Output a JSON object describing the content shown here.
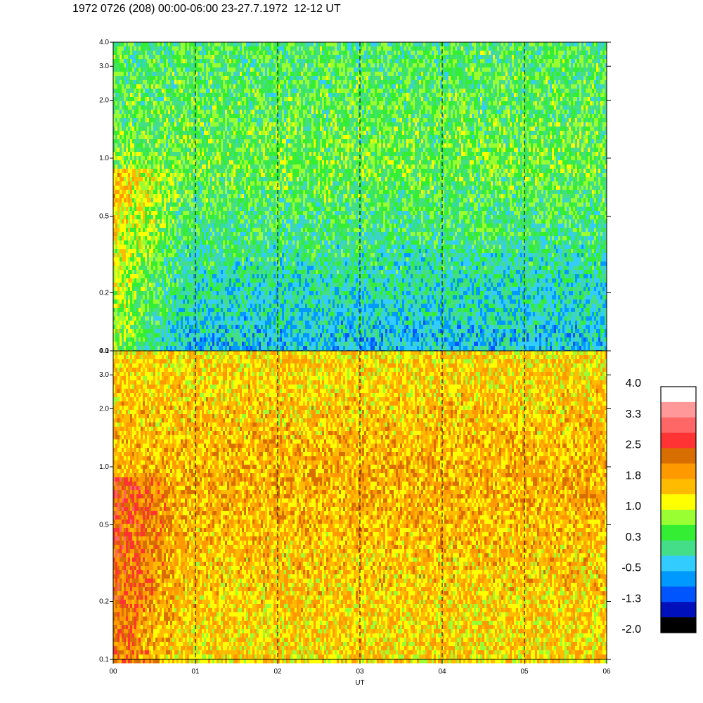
{
  "title": "1972 0726 (208) 00:00-06:00 23-27.7.1972  12-12 UT",
  "chart_data": {
    "type": "heatmap",
    "xlabel": "UT",
    "x_tick_labels": [
      "00",
      "01",
      "02",
      "03",
      "04",
      "05",
      "06"
    ],
    "x_range_hours": [
      0,
      6
    ],
    "y_scale": "log",
    "y_range": [
      0.1,
      4.0
    ],
    "y_ticks": [
      0.1,
      0.2,
      0.5,
      1.0,
      2.0,
      3.0,
      4.0
    ],
    "y_tick_labels": [
      "0.1",
      "0.2",
      "0.5",
      "1.0",
      "2.0",
      "3.0",
      "4.0"
    ],
    "vertical_dashed_lines_at_hours": [
      1,
      2,
      3,
      4,
      5
    ],
    "panels": [
      {
        "name": "upper",
        "dominant_levels": {
          "high_frequency": 0.3,
          "mid": 0.5,
          "low_frequency": -0.5
        }
      },
      {
        "name": "lower",
        "dominant_levels": {
          "high_frequency": 1.4,
          "mid": 1.8,
          "low_frequency": 1.4
        }
      }
    ],
    "colorbar": {
      "labels": [
        "4.0",
        "3.3",
        "2.5",
        "1.8",
        "1.0",
        "0.3",
        "-0.5",
        "-1.3",
        "-2.0"
      ],
      "min": -2.0,
      "max": 4.0,
      "colors": [
        "#ffffff",
        "#ff9999",
        "#ff6666",
        "#ff3333",
        "#d96e00",
        "#ff9900",
        "#ffbb00",
        "#ffff00",
        "#99ff33",
        "#33ee33",
        "#44dd88",
        "#33ccff",
        "#0099ff",
        "#0055ff",
        "#0011bb",
        "#000000"
      ]
    }
  }
}
